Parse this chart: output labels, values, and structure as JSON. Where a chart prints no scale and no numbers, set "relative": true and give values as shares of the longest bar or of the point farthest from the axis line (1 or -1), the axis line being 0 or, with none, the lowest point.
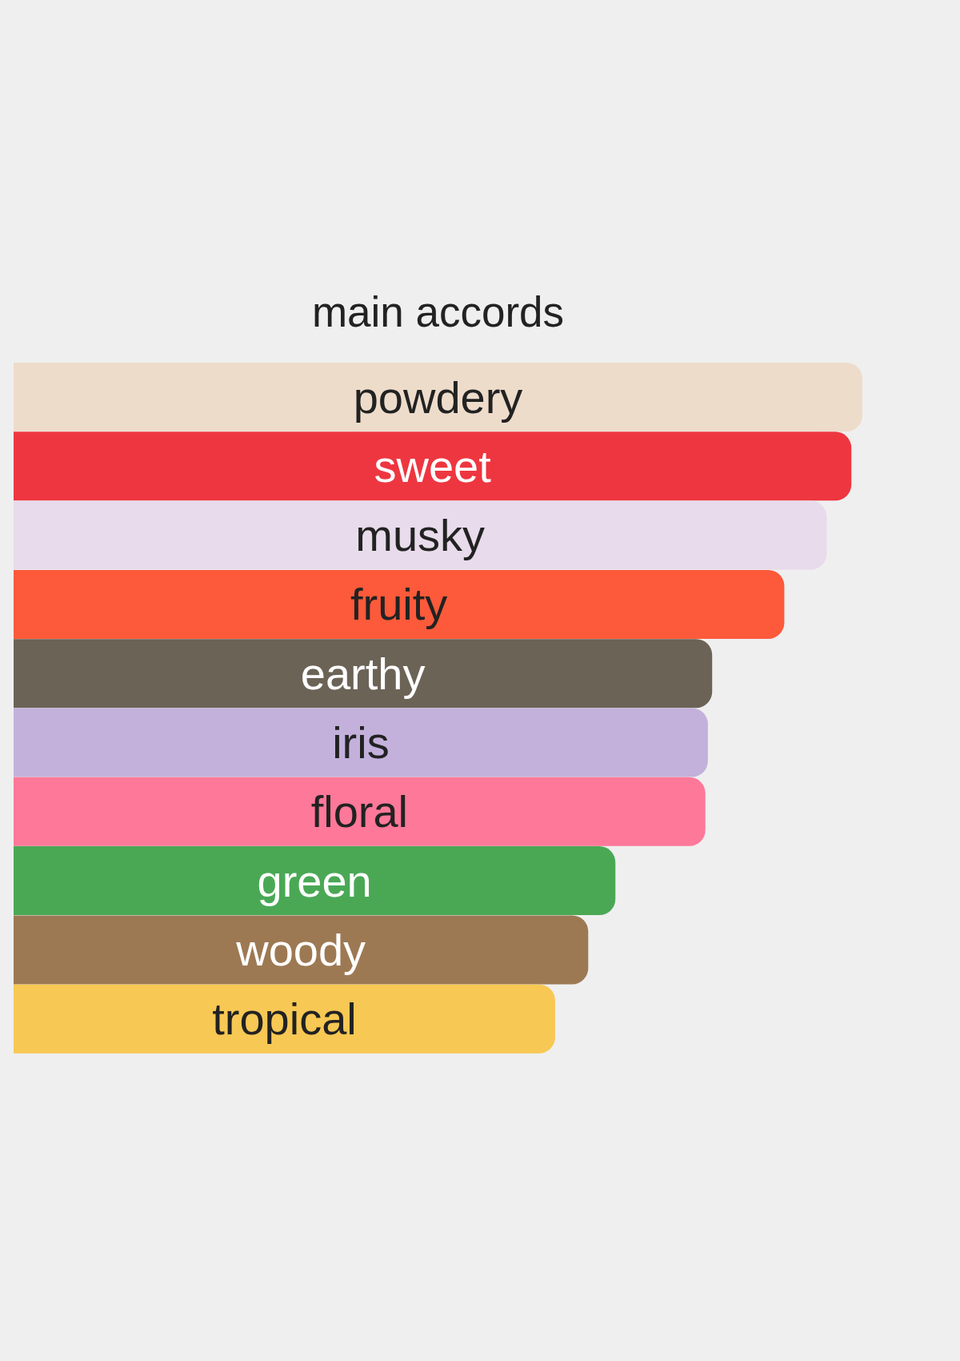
{
  "chart_data": {
    "type": "bar",
    "title": "main accords",
    "orientation": "horizontal",
    "relative": true,
    "categories": [
      "powdery",
      "sweet",
      "musky",
      "fruity",
      "earthy",
      "iris",
      "floral",
      "green",
      "woody",
      "tropical"
    ],
    "values": [
      1,
      0.987,
      0.958,
      0.908,
      0.823,
      0.818,
      0.815,
      0.709,
      0.677,
      0.638
    ],
    "colors": [
      "#eedccb",
      "#ee3640",
      "#e8dbeb",
      "#fc5a3a",
      "#6c6357",
      "#c3b1dc",
      "#fe7899",
      "#4aa855",
      "#9d7953",
      "#f7c853"
    ]
  }
}
